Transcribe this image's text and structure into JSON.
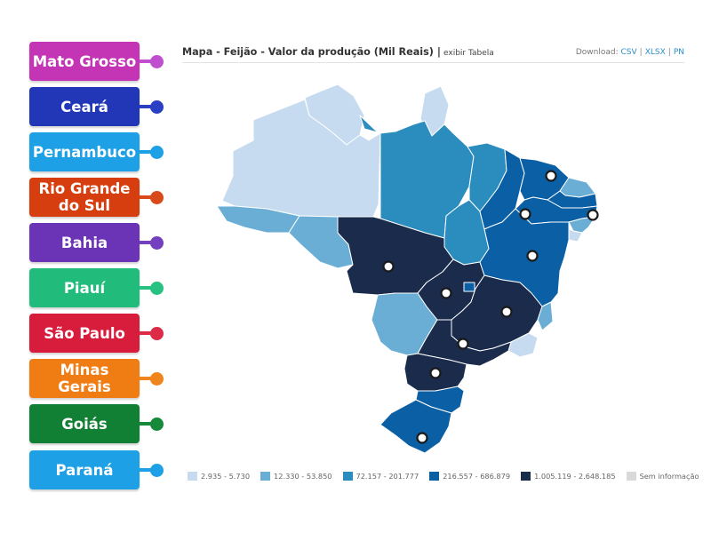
{
  "labels": [
    {
      "text": "Mato Grosso",
      "color": "#c435b6",
      "dot": "#c04fd0"
    },
    {
      "text": "Ceará",
      "color": "#2236b8",
      "dot": "#2a3fc4"
    },
    {
      "text": "Pernambuco",
      "color": "#1ea0e6",
      "dot": "#1ea0e6"
    },
    {
      "text": "Rio Grande do Sul",
      "color": "#d63e0f",
      "dot": "#d94a1a"
    },
    {
      "text": "Bahia",
      "color": "#6b33b6",
      "dot": "#7440c0"
    },
    {
      "text": "Piauí",
      "color": "#21bb7c",
      "dot": "#27c282"
    },
    {
      "text": "São Paulo",
      "color": "#d81d3c",
      "dot": "#dd2a46"
    },
    {
      "text": "Minas Gerais",
      "color": "#f07d14",
      "dot": "#f0851d"
    },
    {
      "text": "Goiás",
      "color": "#128034",
      "dot": "#168a3a"
    },
    {
      "text": "Paraná",
      "color": "#1ea0e6",
      "dot": "#1ea0e6"
    }
  ],
  "map": {
    "title": "Mapa - Feijão - Valor da produção (Mil Reais)",
    "separator": "|",
    "table_toggle": "exibir Tabela",
    "download_label": "Download:",
    "download_links": [
      "CSV",
      "XLSX",
      "PN"
    ]
  },
  "legend": [
    {
      "label": "2.935 - 5.730",
      "color": "#c6dbef"
    },
    {
      "label": "12.330 - 53.850",
      "color": "#6aaed6"
    },
    {
      "label": "72.157 - 201.777",
      "color": "#2b8cbe"
    },
    {
      "label": "216.557 - 686.879",
      "color": "#0b5fa5"
    },
    {
      "label": "1.005.119 - 2.648.185",
      "color": "#1a2b4c"
    },
    {
      "label": "Sem informação",
      "color": "#d9d9d9"
    }
  ]
}
